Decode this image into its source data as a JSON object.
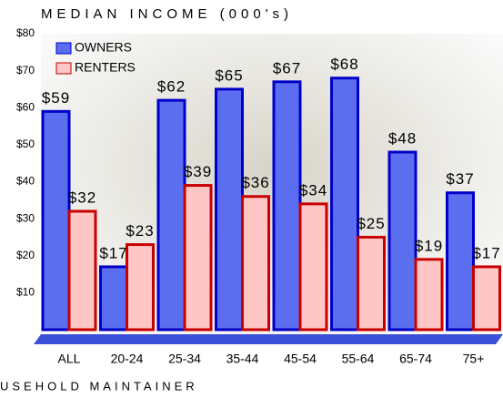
{
  "chart_data": {
    "type": "bar",
    "title": "MEDIAN INCOME (000's)",
    "x_label": "USEHOLD MAINTAINER",
    "categories": [
      "ALL",
      "20-24",
      "25-34",
      "35-44",
      "45-54",
      "55-64",
      "65-74",
      "75+"
    ],
    "series": [
      {
        "name": "OWNERS",
        "color": "#5b6ef0",
        "values": [
          59,
          17,
          62,
          65,
          67,
          68,
          48,
          37
        ],
        "value_labels": [
          "$59",
          "$17",
          "$62",
          "$65",
          "$67",
          "$68",
          "$48",
          "$37"
        ]
      },
      {
        "name": "RENTERS",
        "color": "#ffc6c6",
        "values": [
          32,
          23,
          39,
          36,
          34,
          25,
          19,
          17
        ],
        "value_labels": [
          "$32",
          "$23",
          "$39",
          "$36",
          "$34",
          "$25",
          "$19",
          "$17"
        ]
      }
    ],
    "ylim": [
      0,
      80
    ],
    "yticks": [
      {
        "value": 10,
        "label": "$10"
      },
      {
        "value": 20,
        "label": "$20"
      },
      {
        "value": 30,
        "label": "$30"
      },
      {
        "value": 40,
        "label": "$40"
      },
      {
        "value": 50,
        "label": "$50"
      },
      {
        "value": 60,
        "label": "$60"
      },
      {
        "value": 70,
        "label": "$70"
      },
      {
        "value": 80,
        "label": "$80"
      }
    ],
    "legend": "top-left"
  }
}
